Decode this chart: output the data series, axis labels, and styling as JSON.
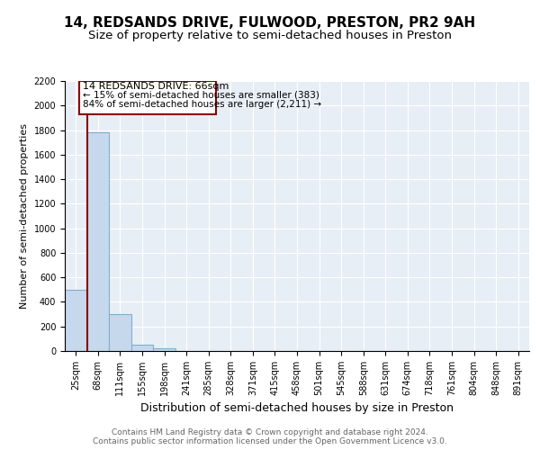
{
  "title": "14, REDSANDS DRIVE, FULWOOD, PRESTON, PR2 9AH",
  "subtitle": "Size of property relative to semi-detached houses in Preston",
  "xlabel": "Distribution of semi-detached houses by size in Preston",
  "ylabel": "Number of semi-detached properties",
  "footer1": "Contains HM Land Registry data © Crown copyright and database right 2024.",
  "footer2": "Contains public sector information licensed under the Open Government Licence v3.0.",
  "categories": [
    "25sqm",
    "68sqm",
    "111sqm",
    "155sqm",
    "198sqm",
    "241sqm",
    "285sqm",
    "328sqm",
    "371sqm",
    "415sqm",
    "458sqm",
    "501sqm",
    "545sqm",
    "588sqm",
    "631sqm",
    "674sqm",
    "718sqm",
    "761sqm",
    "804sqm",
    "848sqm",
    "891sqm"
  ],
  "values": [
    500,
    1780,
    300,
    55,
    20,
    0,
    0,
    0,
    0,
    0,
    0,
    0,
    0,
    0,
    0,
    0,
    0,
    0,
    0,
    0,
    0
  ],
  "bar_color": "#c6d9ec",
  "bar_edge_color": "#7fafd0",
  "property_bin_index": 1,
  "property_label": "14 REDSANDS DRIVE: 66sqm",
  "annotation_line1": "← 15% of semi-detached houses are smaller (383)",
  "annotation_line2": "84% of semi-detached houses are larger (2,211) →",
  "vline_color": "#8b0000",
  "box_edge_color": "#8b0000",
  "ylim": [
    0,
    2200
  ],
  "yticks": [
    0,
    200,
    400,
    600,
    800,
    1000,
    1200,
    1400,
    1600,
    1800,
    2000,
    2200
  ],
  "title_fontsize": 11,
  "subtitle_fontsize": 9.5,
  "xlabel_fontsize": 9,
  "ylabel_fontsize": 8,
  "tick_fontsize": 7,
  "footer_fontsize": 6.5,
  "annotation_fontsize": 8,
  "background_color": "#e8eef5"
}
